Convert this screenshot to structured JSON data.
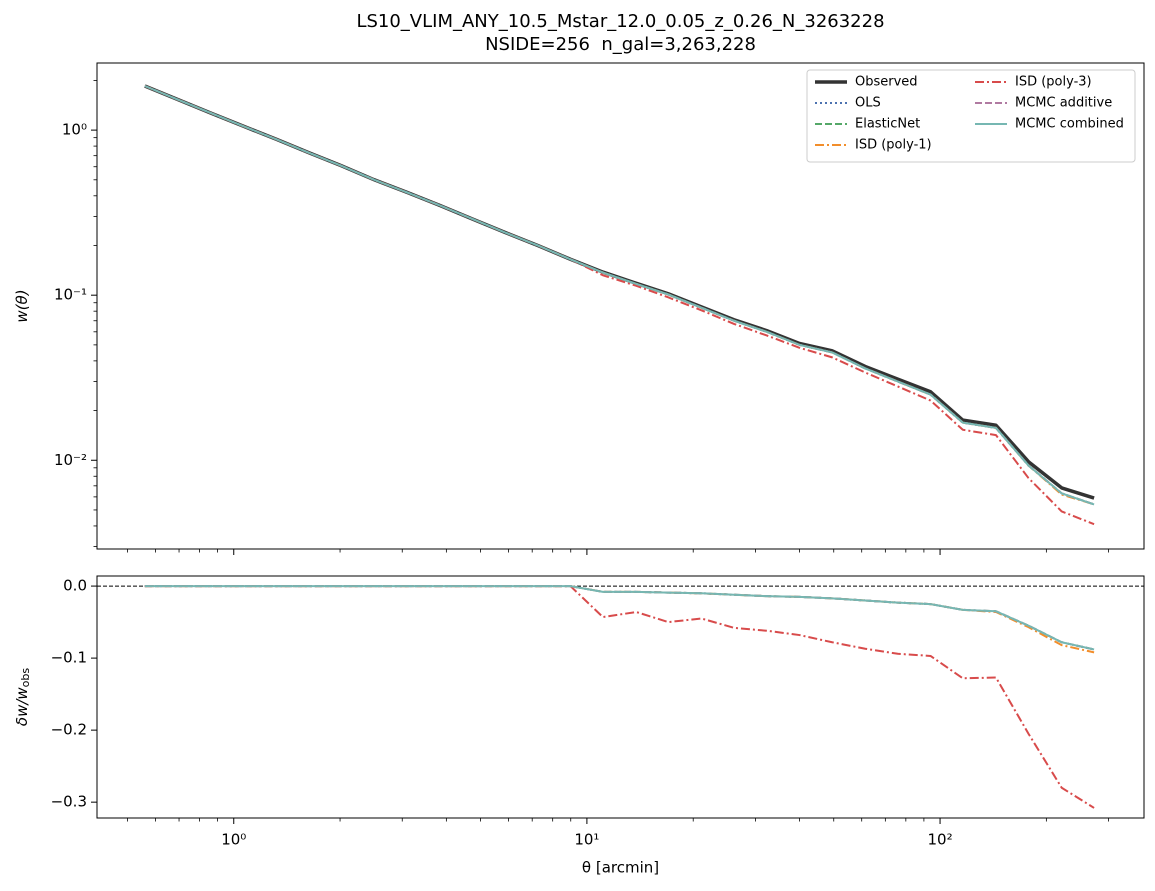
{
  "chart_data": [
    {
      "type": "line",
      "title": "LS10_VLIM_ANY_10.5_Mstar_12.0_0.05_z_0.26_N_3263228",
      "subtitle": "NSIDE=256  n_gal=3,263,228",
      "ylabel": "w(θ)",
      "xscale": "log",
      "yscale": "log",
      "xlim": [
        0.41,
        378
      ],
      "ylim": [
        0.0029,
        2.55
      ],
      "xticks": [
        1,
        10,
        100
      ],
      "xminorticks": [
        0.5,
        0.6,
        0.7,
        0.8,
        0.9,
        2,
        3,
        4,
        5,
        6,
        7,
        8,
        9,
        20,
        30,
        40,
        50,
        60,
        70,
        80,
        90,
        200,
        300
      ],
      "yticks": [
        {
          "value": 0.01,
          "label": "10⁻²"
        },
        {
          "value": 0.1,
          "label": "10⁻¹"
        },
        {
          "value": 1,
          "label": "10⁰"
        }
      ],
      "yminorticks": [
        0.003,
        0.004,
        0.005,
        0.006,
        0.007,
        0.008,
        0.009,
        0.02,
        0.03,
        0.04,
        0.05,
        0.06,
        0.07,
        0.08,
        0.09,
        0.2,
        0.3,
        0.4,
        0.5,
        0.6,
        0.7,
        0.8,
        0.9,
        2
      ],
      "legend": "upper right",
      "legend_columns": 2,
      "x": [
        0.56,
        0.69,
        0.86,
        1.06,
        1.32,
        1.63,
        2.01,
        2.5,
        3.09,
        3.83,
        4.73,
        5.86,
        7.26,
        8.98,
        11.1,
        13.8,
        17.0,
        21.1,
        26.1,
        32.3,
        40.0,
        49.5,
        61.4,
        75.9,
        94.0,
        116,
        144,
        178,
        221,
        273
      ],
      "series": [
        {
          "name": "Observed",
          "color": "#333333",
          "linestyle": "solid",
          "width": 3.5,
          "values": [
            1.85,
            1.54,
            1.27,
            1.06,
            0.88,
            0.73,
            0.61,
            0.5,
            0.42,
            0.35,
            0.29,
            0.24,
            0.2,
            0.165,
            0.138,
            0.118,
            0.102,
            0.085,
            0.071,
            0.061,
            0.051,
            0.046,
            0.037,
            0.031,
            0.026,
            0.0175,
            0.0163,
            0.0098,
            0.0068,
            0.0059
          ]
        },
        {
          "name": "OLS",
          "color": "#4c72b0",
          "linestyle": "dotted",
          "width": 2,
          "values": [
            1.85,
            1.54,
            1.27,
            1.06,
            0.88,
            0.73,
            0.61,
            0.5,
            0.42,
            0.35,
            0.29,
            0.24,
            0.2,
            0.165,
            0.137,
            0.117,
            0.101,
            0.084,
            0.07,
            0.06,
            0.05,
            0.045,
            0.036,
            0.03,
            0.025,
            0.0169,
            0.0157,
            0.0093,
            0.0063,
            0.0054
          ]
        },
        {
          "name": "ElasticNet",
          "color": "#55a868",
          "linestyle": "dashed",
          "width": 2,
          "values": [
            1.85,
            1.54,
            1.27,
            1.06,
            0.88,
            0.73,
            0.61,
            0.5,
            0.42,
            0.35,
            0.29,
            0.24,
            0.2,
            0.165,
            0.137,
            0.117,
            0.101,
            0.084,
            0.07,
            0.06,
            0.05,
            0.045,
            0.036,
            0.03,
            0.025,
            0.0169,
            0.0157,
            0.0093,
            0.0063,
            0.0054
          ]
        },
        {
          "name": "ISD (poly-1)",
          "color": "#f28e2b",
          "linestyle": "dashdot",
          "width": 2,
          "values": [
            1.85,
            1.54,
            1.27,
            1.06,
            0.88,
            0.73,
            0.61,
            0.5,
            0.42,
            0.35,
            0.29,
            0.24,
            0.2,
            0.165,
            0.137,
            0.117,
            0.101,
            0.084,
            0.07,
            0.06,
            0.05,
            0.045,
            0.036,
            0.03,
            0.025,
            0.0169,
            0.0157,
            0.0093,
            0.0062,
            0.0054
          ]
        },
        {
          "name": "ISD (poly-3)",
          "color": "#d84b4b",
          "linestyle": "dashdot",
          "width": 2,
          "values": [
            1.85,
            1.54,
            1.27,
            1.06,
            0.88,
            0.73,
            0.61,
            0.5,
            0.42,
            0.35,
            0.29,
            0.24,
            0.2,
            0.165,
            0.132,
            0.114,
            0.097,
            0.081,
            0.067,
            0.057,
            0.048,
            0.042,
            0.034,
            0.028,
            0.023,
            0.0153,
            0.0142,
            0.0078,
            0.0049,
            0.0041
          ]
        },
        {
          "name": "MCMC additive",
          "color": "#b07aa1",
          "linestyle": "dashed",
          "width": 2,
          "values": [
            1.85,
            1.54,
            1.27,
            1.06,
            0.88,
            0.73,
            0.61,
            0.5,
            0.42,
            0.35,
            0.29,
            0.24,
            0.2,
            0.165,
            0.137,
            0.117,
            0.101,
            0.084,
            0.07,
            0.06,
            0.05,
            0.045,
            0.036,
            0.03,
            0.025,
            0.0169,
            0.0157,
            0.0093,
            0.0063,
            0.0054
          ]
        },
        {
          "name": "MCMC combined",
          "color": "#76b7b2",
          "linestyle": "solid",
          "width": 2,
          "values": [
            1.85,
            1.54,
            1.27,
            1.06,
            0.88,
            0.73,
            0.61,
            0.5,
            0.42,
            0.35,
            0.29,
            0.24,
            0.2,
            0.165,
            0.137,
            0.117,
            0.101,
            0.084,
            0.07,
            0.06,
            0.05,
            0.045,
            0.036,
            0.03,
            0.025,
            0.0169,
            0.0157,
            0.0093,
            0.0063,
            0.0054
          ]
        }
      ]
    },
    {
      "type": "line",
      "xlabel": "θ [arcmin]",
      "ylabel": "δw/w",
      "ylabel_sub": "obs",
      "xscale": "log",
      "xlim": [
        0.41,
        378
      ],
      "ylim": [
        -0.322,
        0.014
      ],
      "xticks": [
        {
          "value": 1,
          "label": "10⁰"
        },
        {
          "value": 10,
          "label": "10¹"
        },
        {
          "value": 100,
          "label": "10²"
        }
      ],
      "xminorticks": [
        0.5,
        0.6,
        0.7,
        0.8,
        0.9,
        2,
        3,
        4,
        5,
        6,
        7,
        8,
        9,
        20,
        30,
        40,
        50,
        60,
        70,
        80,
        90,
        200,
        300
      ],
      "yticks": [
        {
          "value": -0.3,
          "label": "−0.3"
        },
        {
          "value": -0.2,
          "label": "−0.2"
        },
        {
          "value": -0.1,
          "label": "−0.1"
        },
        {
          "value": 0,
          "label": "0.0"
        }
      ],
      "hline": 0,
      "x": [
        0.56,
        0.69,
        0.86,
        1.06,
        1.32,
        1.63,
        2.01,
        2.5,
        3.09,
        3.83,
        4.73,
        5.86,
        7.26,
        8.98,
        11.1,
        13.8,
        17.0,
        21.1,
        26.1,
        32.3,
        40.0,
        49.5,
        61.4,
        75.9,
        94.0,
        116,
        144,
        178,
        221,
        273
      ],
      "series": [
        {
          "color": "#4c72b0",
          "linestyle": "dotted",
          "width": 2,
          "values": [
            0,
            0,
            0,
            0,
            0,
            0,
            0,
            0,
            0,
            0,
            0,
            0,
            0,
            0,
            -0.008,
            -0.008,
            -0.009,
            -0.01,
            -0.012,
            -0.014,
            -0.015,
            -0.017,
            -0.02,
            -0.023,
            -0.025,
            -0.033,
            -0.035,
            -0.055,
            -0.078,
            -0.088
          ]
        },
        {
          "color": "#55a868",
          "linestyle": "dashed",
          "width": 2,
          "values": [
            0,
            0,
            0,
            0,
            0,
            0,
            0,
            0,
            0,
            0,
            0,
            0,
            0,
            0,
            -0.008,
            -0.008,
            -0.009,
            -0.01,
            -0.012,
            -0.014,
            -0.015,
            -0.017,
            -0.02,
            -0.023,
            -0.025,
            -0.033,
            -0.035,
            -0.055,
            -0.078,
            -0.088
          ]
        },
        {
          "color": "#f28e2b",
          "linestyle": "dashdot",
          "width": 2,
          "values": [
            0,
            0,
            0,
            0,
            0,
            0,
            0,
            0,
            0,
            0,
            0,
            0,
            0,
            0,
            -0.008,
            -0.008,
            -0.009,
            -0.01,
            -0.012,
            -0.014,
            -0.015,
            -0.017,
            -0.02,
            -0.023,
            -0.025,
            -0.033,
            -0.036,
            -0.057,
            -0.082,
            -0.092
          ]
        },
        {
          "color": "#d84b4b",
          "linestyle": "dashdot",
          "width": 2,
          "values": [
            0,
            0,
            0,
            0,
            0,
            0,
            0,
            0,
            0,
            0,
            0,
            0,
            0,
            0,
            -0.043,
            -0.036,
            -0.05,
            -0.045,
            -0.058,
            -0.062,
            -0.068,
            -0.078,
            -0.087,
            -0.094,
            -0.097,
            -0.128,
            -0.127,
            -0.205,
            -0.28,
            -0.308
          ]
        },
        {
          "color": "#b07aa1",
          "linestyle": "dashed",
          "width": 2,
          "values": [
            0,
            0,
            0,
            0,
            0,
            0,
            0,
            0,
            0,
            0,
            0,
            0,
            0,
            0,
            -0.008,
            -0.008,
            -0.009,
            -0.01,
            -0.012,
            -0.014,
            -0.015,
            -0.017,
            -0.02,
            -0.023,
            -0.025,
            -0.033,
            -0.035,
            -0.055,
            -0.078,
            -0.088
          ]
        },
        {
          "color": "#76b7b2",
          "linestyle": "solid",
          "width": 2,
          "values": [
            0,
            0,
            0,
            0,
            0,
            0,
            0,
            0,
            0,
            0,
            0,
            0,
            0,
            0,
            -0.008,
            -0.008,
            -0.009,
            -0.01,
            -0.012,
            -0.014,
            -0.015,
            -0.017,
            -0.02,
            -0.023,
            -0.025,
            -0.033,
            -0.035,
            -0.055,
            -0.078,
            -0.088
          ]
        }
      ]
    }
  ]
}
